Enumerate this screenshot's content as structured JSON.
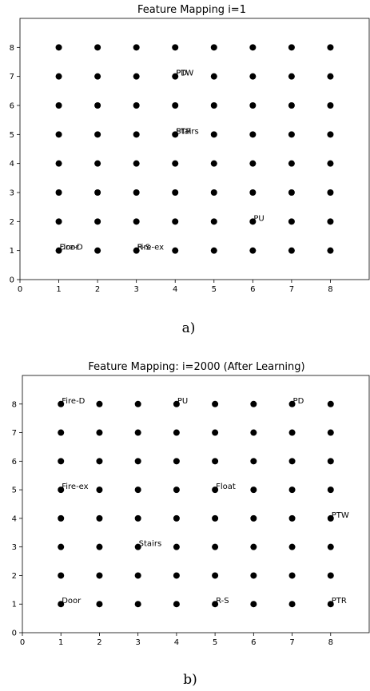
{
  "charts": [
    {
      "title": "Feature Mapping i=1",
      "caption": "a)",
      "x_ticks": [
        "0",
        "1",
        "2",
        "3",
        "4",
        "5",
        "6",
        "7",
        "8"
      ],
      "y_ticks": [
        "0",
        "1",
        "2",
        "3",
        "4",
        "5",
        "6",
        "7",
        "8"
      ]
    },
    {
      "title": "Feature Mapping: i=2000 (After Learning)",
      "caption": "b)",
      "x_ticks": [
        "0",
        "1",
        "2",
        "3",
        "4",
        "5",
        "6",
        "7",
        "8"
      ],
      "y_ticks": [
        "0",
        "1",
        "2",
        "3",
        "4",
        "5",
        "6",
        "7",
        "8"
      ]
    }
  ],
  "chart_data": [
    {
      "type": "scatter",
      "title": "Feature Mapping i=1",
      "xlabel": "",
      "ylabel": "",
      "xlim": [
        0,
        9
      ],
      "ylim": [
        0,
        9
      ],
      "grid": false,
      "points": "8x8 lattice of neurons at integer coordinates x=1..8, y=1..8",
      "annotations": [
        {
          "text": "Door",
          "x": 1,
          "y": 1
        },
        {
          "text": "Fire-D",
          "x": 1,
          "y": 1
        },
        {
          "text": "R-S",
          "x": 3,
          "y": 1
        },
        {
          "text": "Fire-ex",
          "x": 3,
          "y": 1
        },
        {
          "text": "PU",
          "x": 6,
          "y": 2
        },
        {
          "text": "PTR",
          "x": 4,
          "y": 5
        },
        {
          "text": "Stairs",
          "x": 4,
          "y": 5
        },
        {
          "text": "PD",
          "x": 4,
          "y": 7
        },
        {
          "text": "PTW",
          "x": 4,
          "y": 7
        }
      ]
    },
    {
      "type": "scatter",
      "title": "Feature Mapping: i=2000 (After Learning)",
      "xlabel": "",
      "ylabel": "",
      "xlim": [
        0,
        9
      ],
      "ylim": [
        0,
        9
      ],
      "grid": false,
      "points": "8x8 lattice of neurons at integer coordinates x=1..8, y=1..8",
      "annotations": [
        {
          "text": "Fire-D",
          "x": 1,
          "y": 8
        },
        {
          "text": "PU",
          "x": 4,
          "y": 8
        },
        {
          "text": "PD",
          "x": 7,
          "y": 8
        },
        {
          "text": "Fire-ex",
          "x": 1,
          "y": 5
        },
        {
          "text": "Float",
          "x": 5,
          "y": 5
        },
        {
          "text": "PTW",
          "x": 8,
          "y": 4
        },
        {
          "text": "Stairs",
          "x": 3,
          "y": 3
        },
        {
          "text": "Door",
          "x": 1,
          "y": 1
        },
        {
          "text": "R-S",
          "x": 5,
          "y": 1
        },
        {
          "text": "PTR",
          "x": 8,
          "y": 1
        }
      ]
    }
  ]
}
